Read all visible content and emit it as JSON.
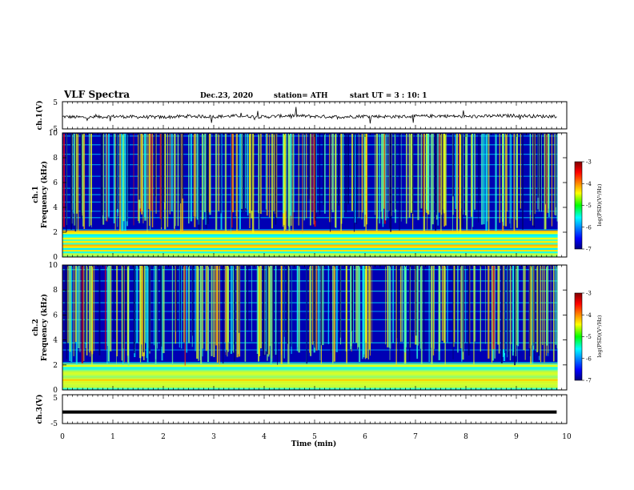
{
  "header": {
    "title": "VLF Spectra",
    "date": "Dec.23, 2020",
    "station": "station= ATH",
    "start_ut": "start UT =  3 : 10: 1"
  },
  "colors": {
    "accent_ch1": "#000000",
    "spectrogram_background": "#0000b4",
    "grid_lines": "#00c8ff"
  },
  "chart_data": [
    {
      "type": "line",
      "panel": "ch1-waveform",
      "ylabel": "ch.1(V)",
      "ylim": [
        -5,
        5
      ],
      "yticks": [
        "5",
        "-5"
      ],
      "xlim": [
        0,
        10
      ],
      "series": [
        {
          "x": [
            0,
            0.5,
            1,
            1.5,
            2,
            2.5,
            3,
            3.5,
            4,
            4.5,
            5,
            5.5,
            6,
            6.5,
            7,
            7.5,
            8,
            8.5,
            9,
            9.5,
            9.8
          ],
          "y": [
            -0.5,
            -0.8,
            -0.4,
            -0.6,
            -0.7,
            -0.3,
            -0.5,
            -0.2,
            -0.6,
            -0.1,
            -0.4,
            -0.6,
            -0.3,
            -0.5,
            -0.4,
            -0.2,
            -0.5,
            -0.3,
            -0.1,
            -0.4,
            -0.3
          ]
        }
      ]
    },
    {
      "type": "heatmap",
      "panel": "ch1-spectrogram",
      "ylabel_top": "ch.1",
      "ylabel": "Frequency (kHz)",
      "ylim": [
        0,
        10
      ],
      "yticks": [
        "0",
        "2",
        "4",
        "6",
        "8",
        "10"
      ],
      "xlim": [
        0,
        10
      ],
      "colorbar": {
        "range": [
          -7,
          -3
        ],
        "ticks": [
          "-3",
          "-4",
          "-5",
          "-6",
          "-7"
        ],
        "label": "log(PSD)(V²/Hz)"
      }
    },
    {
      "type": "heatmap",
      "panel": "ch2-spectrogram",
      "ylabel_top": "ch.2",
      "ylabel": "Frequency (kHz)",
      "ylim": [
        0,
        10
      ],
      "yticks": [
        "0",
        "2",
        "4",
        "6",
        "8",
        "10"
      ],
      "xlim": [
        0,
        10
      ],
      "colorbar": {
        "range": [
          -7,
          -3
        ],
        "ticks": [
          "-3",
          "-4",
          "-5",
          "-6",
          "-7"
        ],
        "label": "log(PSD)(V²/Hz)"
      }
    },
    {
      "type": "line",
      "panel": "ch3-waveform",
      "ylabel": "ch.3(V)",
      "ylim": [
        -5,
        5
      ],
      "yticks": [
        "5",
        "-5"
      ],
      "xlim": [
        0,
        10
      ],
      "series": [
        {
          "x": [
            0,
            9.8
          ],
          "y": [
            -1,
            -1
          ]
        }
      ]
    }
  ],
  "xaxis": {
    "label": "Time (min)",
    "ticks": [
      "0",
      "1",
      "2",
      "3",
      "4",
      "5",
      "6",
      "7",
      "8",
      "9",
      "10"
    ]
  }
}
